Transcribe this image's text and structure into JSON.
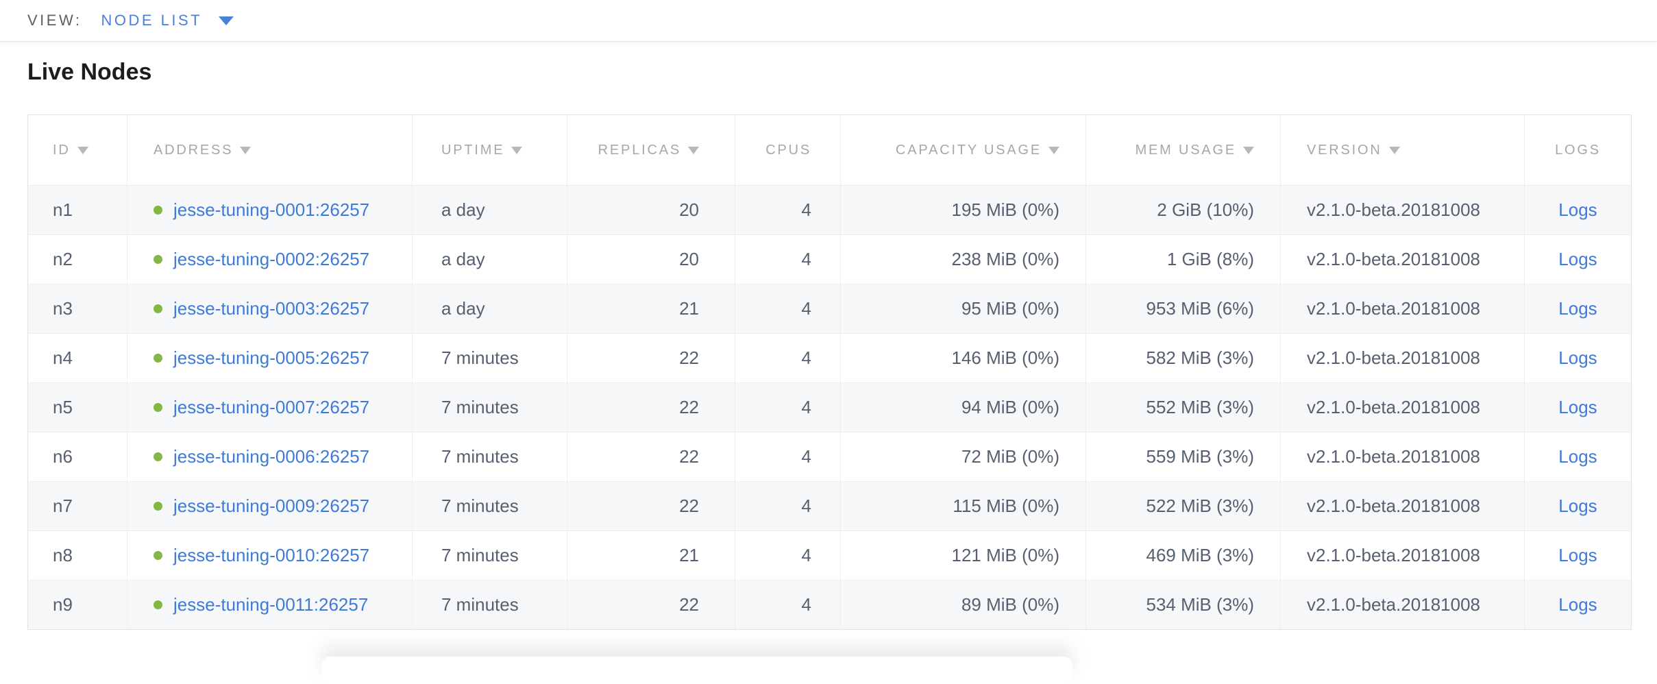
{
  "view_bar": {
    "label": "VIEW:",
    "selected": "NODE LIST"
  },
  "page": {
    "title": "Live Nodes"
  },
  "colors": {
    "link_blue": "#3f7ad8",
    "selector_blue": "#4a80d9",
    "live_dot_green": "#84b647",
    "header_text_gray": "#a2a8ae",
    "body_text_slate": "#566070",
    "alt_row_bg": "#f6f7f8"
  },
  "table": {
    "columns": [
      {
        "key": "id",
        "label": "ID",
        "sortable": true
      },
      {
        "key": "address",
        "label": "ADDRESS",
        "sortable": true
      },
      {
        "key": "uptime",
        "label": "UPTIME",
        "sortable": true
      },
      {
        "key": "replicas",
        "label": "REPLICAS",
        "sortable": true
      },
      {
        "key": "cpus",
        "label": "CPUS",
        "sortable": false
      },
      {
        "key": "capacity",
        "label": "CAPACITY USAGE",
        "sortable": true
      },
      {
        "key": "mem",
        "label": "MEM USAGE",
        "sortable": true
      },
      {
        "key": "version",
        "label": "VERSION",
        "sortable": true
      },
      {
        "key": "logs",
        "label": "LOGS",
        "sortable": false
      }
    ],
    "rows": [
      {
        "id": "n1",
        "address": "jesse-tuning-0001:26257",
        "uptime": "a day",
        "replicas": "20",
        "cpus": "4",
        "capacity": "195 MiB (0%)",
        "mem": "2 GiB (10%)",
        "version": "v2.1.0-beta.20181008",
        "logs": "Logs"
      },
      {
        "id": "n2",
        "address": "jesse-tuning-0002:26257",
        "uptime": "a day",
        "replicas": "20",
        "cpus": "4",
        "capacity": "238 MiB (0%)",
        "mem": "1 GiB (8%)",
        "version": "v2.1.0-beta.20181008",
        "logs": "Logs"
      },
      {
        "id": "n3",
        "address": "jesse-tuning-0003:26257",
        "uptime": "a day",
        "replicas": "21",
        "cpus": "4",
        "capacity": "95 MiB (0%)",
        "mem": "953 MiB (6%)",
        "version": "v2.1.0-beta.20181008",
        "logs": "Logs"
      },
      {
        "id": "n4",
        "address": "jesse-tuning-0005:26257",
        "uptime": "7 minutes",
        "replicas": "22",
        "cpus": "4",
        "capacity": "146 MiB (0%)",
        "mem": "582 MiB (3%)",
        "version": "v2.1.0-beta.20181008",
        "logs": "Logs"
      },
      {
        "id": "n5",
        "address": "jesse-tuning-0007:26257",
        "uptime": "7 minutes",
        "replicas": "22",
        "cpus": "4",
        "capacity": "94 MiB (0%)",
        "mem": "552 MiB (3%)",
        "version": "v2.1.0-beta.20181008",
        "logs": "Logs"
      },
      {
        "id": "n6",
        "address": "jesse-tuning-0006:26257",
        "uptime": "7 minutes",
        "replicas": "22",
        "cpus": "4",
        "capacity": "72 MiB (0%)",
        "mem": "559 MiB (3%)",
        "version": "v2.1.0-beta.20181008",
        "logs": "Logs"
      },
      {
        "id": "n7",
        "address": "jesse-tuning-0009:26257",
        "uptime": "7 minutes",
        "replicas": "22",
        "cpus": "4",
        "capacity": "115 MiB (0%)",
        "mem": "522 MiB (3%)",
        "version": "v2.1.0-beta.20181008",
        "logs": "Logs"
      },
      {
        "id": "n8",
        "address": "jesse-tuning-0010:26257",
        "uptime": "7 minutes",
        "replicas": "21",
        "cpus": "4",
        "capacity": "121 MiB (0%)",
        "mem": "469 MiB (3%)",
        "version": "v2.1.0-beta.20181008",
        "logs": "Logs"
      },
      {
        "id": "n9",
        "address": "jesse-tuning-0011:26257",
        "uptime": "7 minutes",
        "replicas": "22",
        "cpus": "4",
        "capacity": "89 MiB (0%)",
        "mem": "534 MiB (3%)",
        "version": "v2.1.0-beta.20181008",
        "logs": "Logs"
      }
    ]
  }
}
